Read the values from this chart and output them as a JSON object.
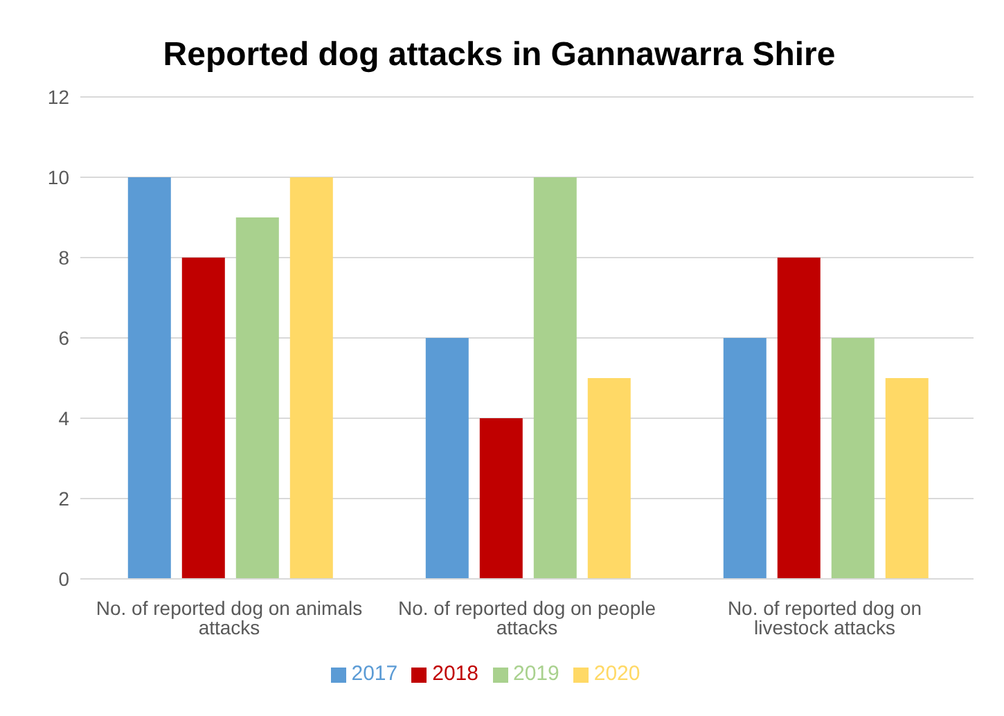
{
  "chart_data": {
    "type": "bar",
    "title": "Reported dog attacks in Gannawarra Shire",
    "categories": [
      "No. of reported dog on animals attacks",
      "No. of reported dog on people attacks",
      "No. of reported dog on livestock attacks"
    ],
    "series": [
      {
        "name": "2017",
        "color": "#5b9bd5",
        "values": [
          10,
          6,
          6
        ]
      },
      {
        "name": "2018",
        "color": "#c00000",
        "values": [
          8,
          4,
          8
        ]
      },
      {
        "name": "2019",
        "color": "#a9d18e",
        "values": [
          9,
          10,
          6
        ]
      },
      {
        "name": "2020",
        "color": "#ffd966",
        "values": [
          10,
          5,
          5
        ]
      }
    ],
    "ylim": [
      0,
      12
    ],
    "yticks": [
      0,
      2,
      4,
      6,
      8,
      10,
      12
    ],
    "grid": "y",
    "legend": "bottom"
  }
}
